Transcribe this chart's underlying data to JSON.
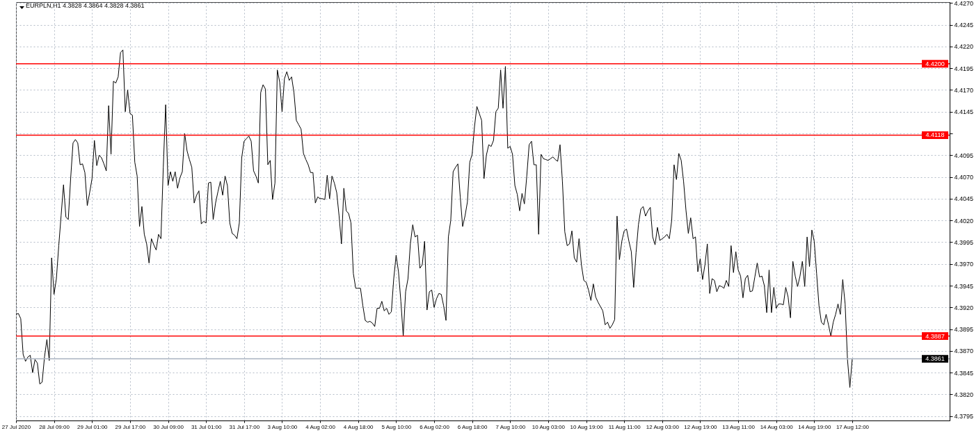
{
  "chart_data": {
    "type": "line",
    "title": "EURPLN,H1  4.3828 4.3864 4.3828 4.3861",
    "categories": [
      "27 Jul 2020",
      null,
      null,
      null,
      null,
      null,
      null,
      null,
      null,
      null,
      null,
      null,
      null,
      null,
      null,
      null,
      "28 Jul 09:00",
      null,
      null,
      null,
      null,
      null,
      null,
      null,
      null,
      null,
      null,
      null,
      null,
      null,
      null,
      null,
      "29 Jul 01:00",
      null,
      null,
      null,
      null,
      null,
      null,
      null,
      null,
      null,
      null,
      null,
      null,
      null,
      null,
      null,
      "29 Jul 17:00",
      null,
      null,
      null,
      null,
      null,
      null,
      null,
      null,
      null,
      null,
      null,
      null,
      null,
      null,
      null,
      "30 Jul 09:00",
      null,
      null,
      null,
      null,
      null,
      null,
      null,
      null,
      null,
      null,
      null,
      null,
      null,
      null,
      null,
      "31 Jul 01:00",
      null,
      null,
      null,
      null,
      null,
      null,
      null,
      null,
      null,
      null,
      null,
      null,
      null,
      null,
      null,
      "31 Jul 17:00",
      null,
      null,
      null,
      null,
      null,
      null,
      null,
      null,
      null,
      null,
      null,
      null,
      null,
      null,
      null,
      "3 Aug 10:00",
      null,
      null,
      null,
      null,
      null,
      null,
      null,
      null,
      null,
      null,
      null,
      null,
      null,
      null,
      null,
      "4 Aug 02:00",
      null,
      null,
      null,
      null,
      null,
      null,
      null,
      null,
      null,
      null,
      null,
      null,
      null,
      null,
      null,
      "4 Aug 18:00",
      null,
      null,
      null,
      null,
      null,
      null,
      null,
      null,
      null,
      null,
      null,
      null,
      null,
      null,
      null,
      "5 Aug 10:00",
      null,
      null,
      null,
      null,
      null,
      null,
      null,
      null,
      null,
      null,
      null,
      null,
      null,
      null,
      null,
      "6 Aug 02:00",
      null,
      null,
      null,
      null,
      null,
      null,
      null,
      null,
      null,
      null,
      null,
      null,
      null,
      null,
      null,
      "6 Aug 18:00",
      null,
      null,
      null,
      null,
      null,
      null,
      null,
      null,
      null,
      null,
      null,
      null,
      null,
      null,
      null,
      "7 Aug 10:00",
      null,
      null,
      null,
      null,
      null,
      null,
      null,
      null,
      null,
      null,
      null,
      null,
      null,
      null,
      null,
      "10 Aug 03:00",
      null,
      null,
      null,
      null,
      null,
      null,
      null,
      null,
      null,
      null,
      null,
      null,
      null,
      null,
      null,
      "10 Aug 19:00",
      null,
      null,
      null,
      null,
      null,
      null,
      null,
      null,
      null,
      null,
      null,
      null,
      null,
      null,
      null,
      "11 Aug 11:00",
      null,
      null,
      null,
      null,
      null,
      null,
      null,
      null,
      null,
      null,
      null,
      null,
      null,
      null,
      null,
      "12 Aug 03:00",
      null,
      null,
      null,
      null,
      null,
      null,
      null,
      null,
      null,
      null,
      null,
      null,
      null,
      null,
      null,
      "12 Aug 19:00",
      null,
      null,
      null,
      null,
      null,
      null,
      null,
      null,
      null,
      null,
      null,
      null,
      null,
      null,
      null,
      "13 Aug 11:00",
      null,
      null,
      null,
      null,
      null,
      null,
      null,
      null,
      null,
      null,
      null,
      null,
      null,
      null,
      null,
      "14 Aug 03:00",
      null,
      null,
      null,
      null,
      null,
      null,
      null,
      null,
      null,
      null,
      null,
      null,
      null,
      null,
      null,
      "14 Aug 19:00",
      null,
      null,
      null,
      null,
      null,
      null,
      null,
      null,
      null,
      null,
      null,
      null,
      null,
      null,
      null,
      "17 Aug 12:00",
      null,
      null,
      null,
      null,
      null,
      null,
      null,
      null,
      null,
      null,
      null,
      null,
      null,
      null,
      null,
      null,
      null,
      null,
      null,
      null,
      null,
      null,
      null,
      null,
      null,
      null,
      null,
      null,
      null,
      null,
      null,
      null,
      null,
      null,
      null,
      null,
      null,
      null,
      null,
      null,
      null
    ],
    "series": [
      {
        "color": "#000000",
        "values": [
          4.3912,
          4.3913,
          4.3907,
          4.3866,
          4.3858,
          4.3863,
          4.3865,
          4.3845,
          4.386,
          4.3856,
          4.3832,
          4.3834,
          4.3863,
          4.3883,
          4.3859,
          4.3977,
          4.3935,
          4.3953,
          4.3991,
          4.4026,
          4.4061,
          4.4024,
          4.4021,
          4.4068,
          4.4109,
          4.4113,
          4.4109,
          4.4084,
          4.4085,
          4.4075,
          4.4037,
          4.4052,
          4.4068,
          4.4112,
          4.4083,
          4.4095,
          4.4092,
          4.4085,
          4.4077,
          4.4152,
          4.4096,
          4.418,
          4.4178,
          4.4185,
          4.4213,
          4.4216,
          4.4145,
          4.417,
          4.4143,
          4.4141,
          4.4087,
          4.4071,
          4.4013,
          4.4036,
          4.4004,
          4.3993,
          4.3971,
          4.3999,
          4.3992,
          4.3986,
          4.4004,
          4.3999,
          4.4081,
          4.4153,
          4.406,
          4.4076,
          4.4065,
          4.4076,
          4.4057,
          4.4069,
          4.4076,
          4.412,
          4.41,
          4.409,
          4.4081,
          4.404,
          4.4049,
          4.4054,
          4.4016,
          4.4019,
          4.4017,
          4.4063,
          4.4064,
          4.4021,
          4.404,
          4.4053,
          4.4065,
          4.4049,
          4.4071,
          4.406,
          4.4017,
          4.4005,
          4.4003,
          4.3999,
          4.4017,
          4.4092,
          4.4111,
          4.4114,
          4.4117,
          4.4111,
          4.4077,
          4.4071,
          4.4063,
          4.4167,
          4.4176,
          4.4171,
          4.4084,
          4.4089,
          4.4044,
          4.4063,
          4.4193,
          4.4179,
          4.4145,
          4.4183,
          4.4191,
          4.4181,
          4.4185,
          4.4167,
          4.4135,
          4.413,
          4.4125,
          4.4097,
          4.409,
          4.4084,
          4.4075,
          4.4075,
          4.404,
          4.4047,
          4.4045,
          4.4045,
          4.4044,
          4.4072,
          4.4045,
          4.4071,
          4.4063,
          4.4052,
          4.4025,
          4.3993,
          4.4057,
          4.4031,
          4.4028,
          4.4017,
          4.3959,
          4.3942,
          4.3942,
          4.3942,
          4.3922,
          4.3905,
          4.3903,
          4.3904,
          4.3902,
          4.3898,
          4.3919,
          4.3919,
          4.3927,
          4.3916,
          4.3919,
          4.3912,
          4.3915,
          4.3953,
          4.398,
          4.3961,
          4.3927,
          4.3887,
          4.3938,
          4.3953,
          4.3993,
          4.4015,
          4.4001,
          4.4003,
          4.3965,
          4.3969,
          4.3996,
          4.3917,
          4.3938,
          4.394,
          4.392,
          4.393,
          4.3936,
          4.3935,
          4.3922,
          4.3905,
          4.4001,
          4.402,
          4.4076,
          4.4081,
          4.4085,
          4.4047,
          4.4013,
          4.4025,
          4.4041,
          4.4087,
          4.4096,
          4.4128,
          4.4151,
          4.4143,
          4.4135,
          4.4068,
          4.4095,
          4.4107,
          4.4105,
          4.4112,
          4.4145,
          4.4149,
          4.4193,
          4.4149,
          4.4197,
          4.4103,
          4.4105,
          4.4096,
          4.406,
          4.405,
          4.4031,
          4.4051,
          4.4039,
          4.4071,
          4.4107,
          4.4111,
          4.4084,
          4.4084,
          4.4004,
          4.4096,
          4.4091,
          4.409,
          4.4089,
          4.4091,
          4.4093,
          4.409,
          4.4088,
          4.4107,
          4.4065,
          4.4007,
          4.3991,
          4.3993,
          4.4008,
          4.3977,
          4.3972,
          4.3999,
          4.3969,
          4.3951,
          4.3949,
          4.394,
          4.3928,
          4.3947,
          4.3932,
          4.3926,
          4.3921,
          4.3916,
          4.39,
          4.3903,
          4.3896,
          4.39,
          4.3906,
          4.4025,
          4.3975,
          4.3996,
          4.4008,
          4.401,
          4.3996,
          4.3984,
          4.3943,
          4.3983,
          4.4015,
          4.4033,
          4.4036,
          4.4025,
          4.4031,
          4.4035,
          4.4001,
          4.3992,
          4.4012,
          4.3997,
          4.3999,
          4.4001,
          4.4004,
          4.3999,
          4.402,
          4.4084,
          4.4067,
          4.4097,
          4.4089,
          4.4065,
          4.4032,
          4.4005,
          4.4023,
          4.3999,
          4.4001,
          4.3961,
          4.3976,
          4.3952,
          4.3969,
          4.3993,
          4.3936,
          4.3953,
          4.3951,
          4.3938,
          4.3945,
          4.3944,
          4.3942,
          4.3951,
          4.3944,
          4.3991,
          4.396,
          4.3984,
          4.3963,
          4.3956,
          4.3931,
          4.3953,
          4.3957,
          4.3938,
          4.3939,
          4.3955,
          4.3971,
          4.3955,
          4.3956,
          4.3945,
          4.3914,
          4.3963,
          4.3914,
          4.3943,
          4.3919,
          4.3924,
          4.3924,
          4.3923,
          4.3943,
          4.3932,
          4.3908,
          4.3973,
          4.3956,
          4.3944,
          4.3956,
          4.3973,
          4.3944,
          4.4001,
          4.3967,
          4.4009,
          4.3996,
          4.3959,
          4.3922,
          4.3903,
          4.39,
          4.3912,
          4.39,
          4.3887,
          4.3903,
          4.3912,
          4.3924,
          4.3912,
          4.3952,
          4.3924,
          4.386,
          4.3828,
          4.3861,
          null,
          null,
          null,
          null,
          null,
          null,
          null,
          null,
          null,
          null,
          null,
          null,
          null,
          null,
          null,
          null,
          null,
          null,
          null,
          null,
          null,
          null,
          null,
          null,
          null,
          null,
          null,
          null,
          null,
          null,
          null,
          null,
          null,
          null,
          null,
          null,
          null,
          null,
          null,
          null,
          null
        ]
      }
    ],
    "ylim": [
      4.379,
      4.4271
    ],
    "yticks": [
      4.3795,
      {
        "value": 4.382,
        "label": "4.3820"
      },
      4.3845,
      {
        "value": 4.387,
        "label": "4.3870"
      },
      4.3895,
      {
        "value": 4.392,
        "label": "4.3920"
      },
      4.3945,
      {
        "value": 4.397,
        "label": "4.3970"
      },
      4.3995,
      {
        "value": 4.402,
        "label": "4.4020"
      },
      4.4045,
      {
        "value": 4.407,
        "label": "4.4070"
      },
      4.4095,
      {
        "value": 4.412,
        "label": null
      },
      4.4145,
      {
        "value": 4.417,
        "label": "4.4170"
      },
      4.4195,
      {
        "value": 4.422,
        "label": "4.4220"
      },
      4.4245,
      {
        "value": 4.427,
        "label": "4.4270"
      }
    ],
    "grid": true,
    "ref_lines": [
      {
        "axis": "y",
        "value": 4.42,
        "label": "4.4200",
        "color": "#ff0000"
      },
      {
        "axis": "y",
        "value": 4.4118,
        "label": "4.4118",
        "color": "#ff0000"
      },
      {
        "axis": "y",
        "value": 4.3887,
        "label": "4.3887",
        "color": "#ff0000"
      },
      {
        "axis": "y",
        "value": 4.3861,
        "label": "4.3861",
        "color": "#a9b3c1"
      }
    ]
  }
}
